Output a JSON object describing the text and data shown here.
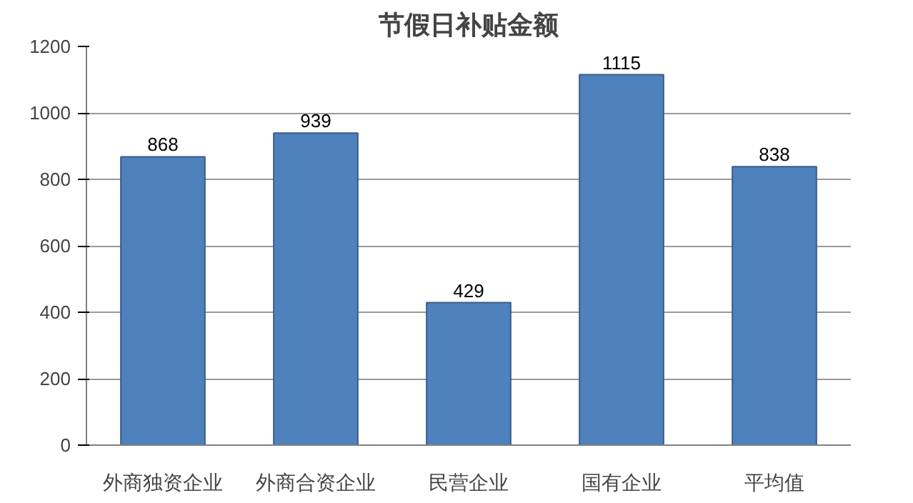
{
  "chart_data": {
    "type": "bar",
    "title": "节假日补贴金额",
    "categories": [
      "外商独资企业",
      "外商合资企业",
      "民营企业",
      "国有企业",
      "平均值"
    ],
    "values": [
      868,
      939,
      429,
      1115,
      838
    ],
    "color": "#4f81bd",
    "ylim": [
      0,
      1200
    ],
    "yticks": [
      0,
      200,
      400,
      600,
      800,
      1000,
      1200
    ],
    "grid": "y",
    "data_labels": true
  }
}
